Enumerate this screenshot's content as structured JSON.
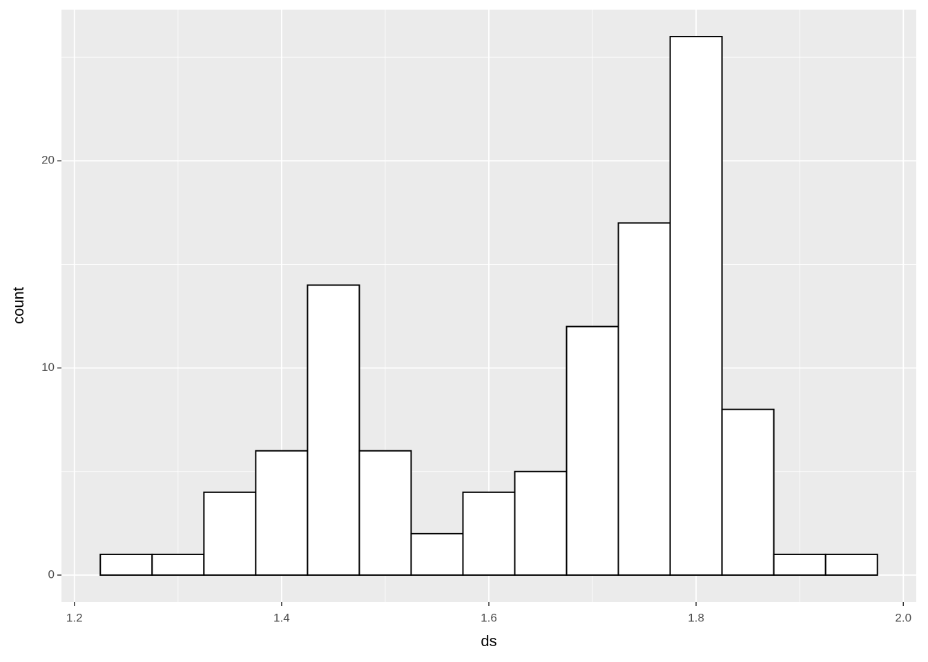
{
  "chart_data": {
    "type": "histogram",
    "x_label": "ds",
    "y_label": "count",
    "bins": [
      1.225,
      1.275,
      1.325,
      1.375,
      1.425,
      1.475,
      1.525,
      1.575,
      1.625,
      1.675,
      1.725,
      1.775,
      1.825,
      1.875,
      1.925,
      1.975
    ],
    "values": [
      1,
      1,
      4,
      6,
      14,
      6,
      2,
      4,
      5,
      12,
      17,
      26,
      8,
      1,
      1
    ],
    "color": "#ffffff",
    "edge_color": "#000000",
    "xlim": [
      1.1875,
      2.0125
    ],
    "xticks": [
      {
        "value": 1.2,
        "label": "1.2"
      },
      1.4,
      1.6,
      1.8,
      {
        "value": 2.0,
        "label": "2.0"
      }
    ],
    "ylim": [
      -1.3,
      27.3
    ],
    "yticks": [
      0,
      10,
      20
    ],
    "grid": true
  }
}
